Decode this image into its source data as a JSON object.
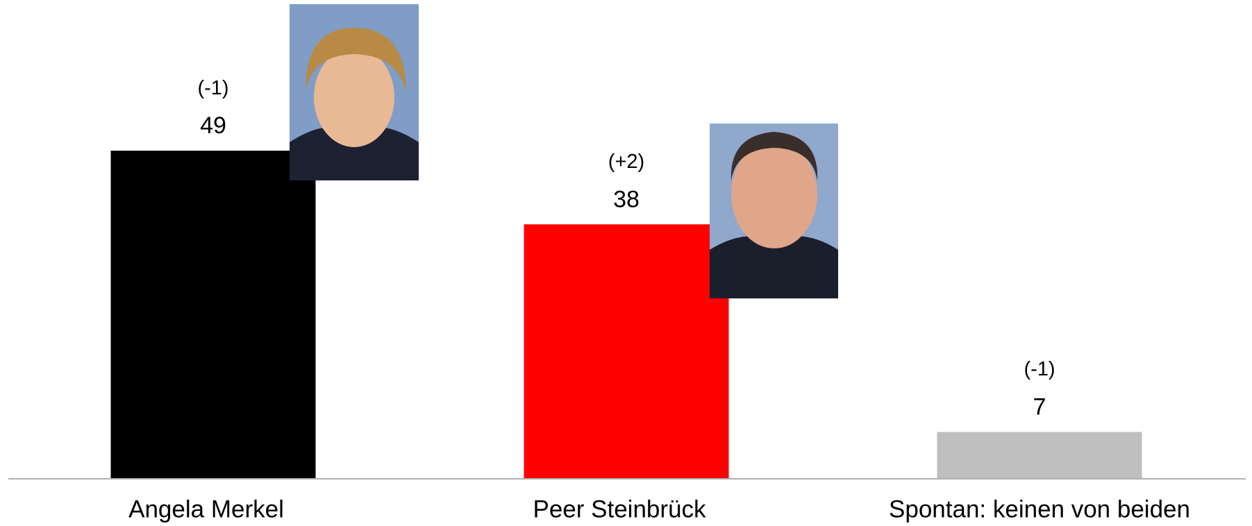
{
  "chart_data": {
    "type": "bar",
    "categories": [
      "Angela Merkel",
      "Peer Steinbrück",
      "Spontan: keinen von beiden"
    ],
    "values": [
      49,
      38,
      7
    ],
    "changes": [
      "(-1)",
      "(+2)",
      "(-1)"
    ],
    "colors": [
      "#000000",
      "#ff0000",
      "#bfbfbf"
    ]
  }
}
